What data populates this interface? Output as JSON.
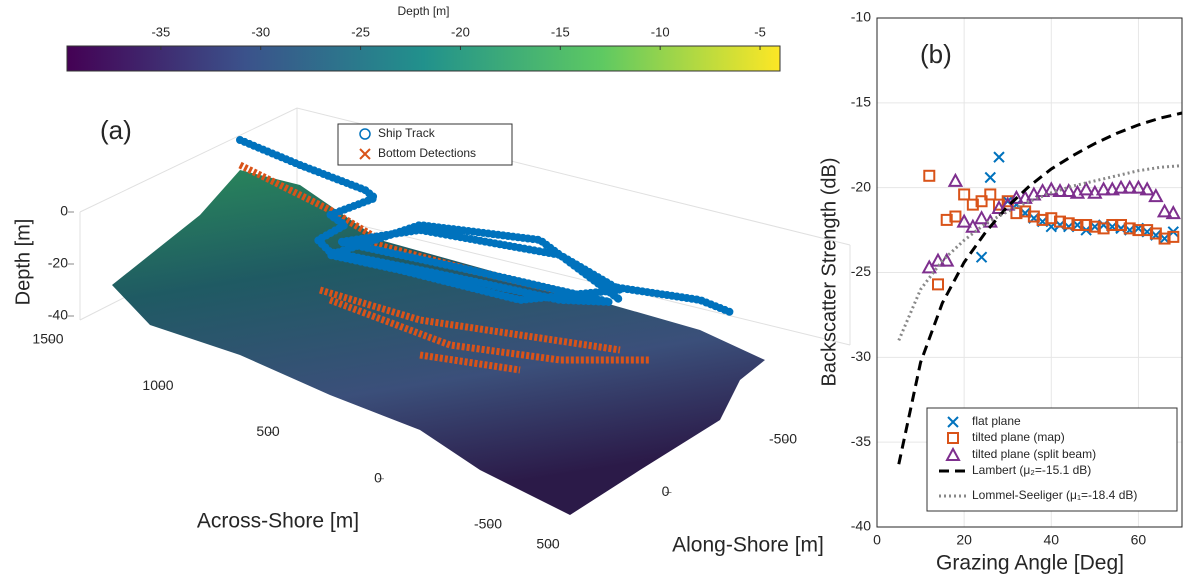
{
  "chart_data": [
    {
      "type": "surface3d",
      "panel_label": "(a)",
      "colorbar": {
        "label": "Depth [m]",
        "lim": [
          -39.7,
          -4
        ],
        "ticks": [
          -35,
          -30,
          -25,
          -20,
          -15,
          -10,
          -5
        ]
      },
      "zlabel": "Depth [m]",
      "zlim": [
        -40,
        0
      ],
      "zticks": [
        0,
        -20,
        -40
      ],
      "xlabel": "Across-Shore [m]",
      "xlim": [
        -500,
        1500
      ],
      "xticks": [
        1500,
        1000,
        500,
        0,
        -500
      ],
      "ylabel": "Along-Shore [m]",
      "ylim": [
        -500,
        500
      ],
      "yticks": [
        -500,
        0,
        500
      ],
      "series": [
        {
          "name": "Ship Track",
          "color": "#0072BD",
          "marker": "o"
        },
        {
          "name": "Bottom Detections",
          "color": "#D95319",
          "marker": "x"
        }
      ]
    },
    {
      "type": "scatter",
      "panel_label": "(b)",
      "xlabel": "Grazing Angle [Deg]",
      "ylabel": "Backscatter Strength (dB)",
      "xlim": [
        0,
        70
      ],
      "ylim": [
        -40,
        -10
      ],
      "xticks": [
        0,
        20,
        40,
        60
      ],
      "yticks": [
        -40,
        -35,
        -30,
        -25,
        -20,
        -15,
        -10
      ],
      "grid": true,
      "series": [
        {
          "name": "flat plane",
          "color": "#0072BD",
          "marker": "x",
          "x": [
            24,
            26,
            28,
            30,
            32,
            34,
            36,
            38,
            40,
            42,
            44,
            46,
            48,
            50,
            52,
            54,
            56,
            58,
            60,
            62,
            64,
            66,
            68
          ],
          "values": [
            -24.1,
            -19.4,
            -18.2,
            -20.8,
            -21,
            -21.5,
            -21.8,
            -22,
            -22.3,
            -22.2,
            -22.3,
            -22.2,
            -22.5,
            -22.3,
            -22.2,
            -22.3,
            -22.4,
            -22.5,
            -22.4,
            -22.6,
            -22.8,
            -23,
            -22.6
          ]
        },
        {
          "name": "tilted plane (map)",
          "color": "#D95319",
          "marker": "s",
          "x": [
            12,
            14,
            16,
            18,
            20,
            22,
            24,
            26,
            28,
            30,
            32,
            34,
            36,
            38,
            40,
            42,
            44,
            46,
            48,
            50,
            52,
            54,
            56,
            58,
            60,
            62,
            64,
            66,
            68
          ],
          "values": [
            -19.3,
            -25.7,
            -21.9,
            -21.7,
            -20.4,
            -21,
            -20.8,
            -20.4,
            -21,
            -20.8,
            -21.5,
            -21.4,
            -21.7,
            -21.9,
            -21.8,
            -22,
            -22.1,
            -22.2,
            -22.2,
            -22.3,
            -22.4,
            -22.2,
            -22.2,
            -22.4,
            -22.5,
            -22.5,
            -22.7,
            -23,
            -22.9
          ]
        },
        {
          "name": "tilted plane (split beam)",
          "color": "#7E2F8E",
          "marker": "^",
          "x": [
            12,
            14,
            16,
            18,
            20,
            22,
            24,
            26,
            28,
            30,
            32,
            34,
            36,
            38,
            40,
            42,
            44,
            46,
            48,
            50,
            52,
            54,
            56,
            58,
            60,
            62,
            64,
            66,
            68
          ],
          "values": [
            -24.7,
            -24.3,
            -24.3,
            -19.6,
            -22,
            -22.3,
            -21.8,
            -22,
            -21.2,
            -21,
            -20.6,
            -20.6,
            -20.4,
            -20.2,
            -20.1,
            -20.2,
            -20.2,
            -20.3,
            -20.1,
            -20.3,
            -20.1,
            -20.1,
            -20,
            -20,
            -20,
            -20.1,
            -20.5,
            -21.4,
            -21.5
          ]
        },
        {
          "name": "Lambert (μ₂=-15.1 dB)",
          "color": "#000000",
          "marker": "dash",
          "x": [
            5,
            10,
            15,
            20,
            25,
            30,
            35,
            40,
            45,
            50,
            55,
            60,
            65,
            70
          ],
          "values": [
            -36.3,
            -30.3,
            -26.8,
            -24.4,
            -22.6,
            -21.1,
            -19.9,
            -18.9,
            -18.1,
            -17.4,
            -16.8,
            -16.3,
            -15.9,
            -15.6
          ]
        },
        {
          "name": "Lommel-Seeliger (μ₁=-18.4 dB)",
          "color": "#888888",
          "marker": "dot",
          "x": [
            5,
            10,
            15,
            20,
            25,
            30,
            35,
            40,
            45,
            50,
            55,
            60,
            65,
            70
          ],
          "values": [
            -29.0,
            -26.0,
            -24.3,
            -23.1,
            -22.1,
            -21.4,
            -20.8,
            -20.3,
            -19.9,
            -19.6,
            -19.3,
            -19.0,
            -18.8,
            -18.7
          ]
        }
      ]
    }
  ]
}
